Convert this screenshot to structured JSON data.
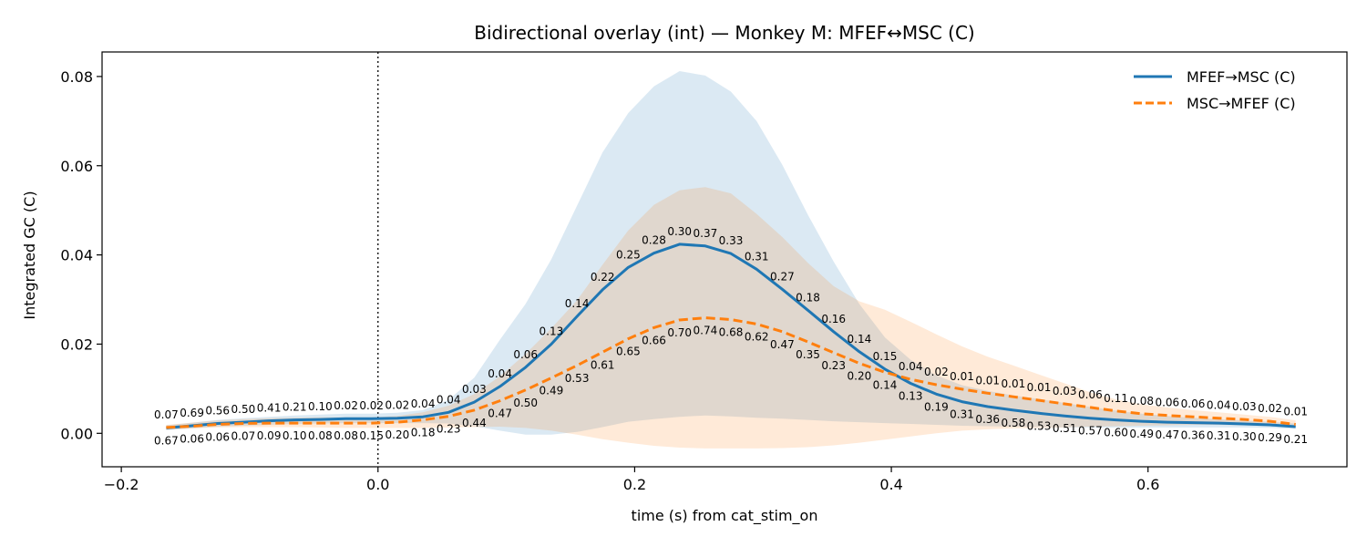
{
  "chart_data": {
    "type": "line",
    "title": "Bidirectional overlay (int) — Monkey M: MFEF↔MSC (C)",
    "xlabel": "time (s) from cat_stim_on",
    "ylabel": "Integrated GC (C)",
    "xlim": [
      -0.215,
      0.755
    ],
    "ylim": [
      -0.0075,
      0.0855
    ],
    "xticks": [
      -0.2,
      0.0,
      0.2,
      0.4,
      0.6
    ],
    "xtick_labels": [
      "−0.2",
      "0.0",
      "0.2",
      "0.4",
      "0.6"
    ],
    "yticks": [
      0.0,
      0.02,
      0.04,
      0.06,
      0.08
    ],
    "ytick_labels": [
      "0.00",
      "0.02",
      "0.04",
      "0.06",
      "0.08"
    ],
    "grid": false,
    "legend_position": "top-right",
    "vline_x": 0.0,
    "x": [
      -0.165,
      -0.145,
      -0.125,
      -0.105,
      -0.085,
      -0.065,
      -0.045,
      -0.025,
      -0.005,
      0.015,
      0.035,
      0.055,
      0.075,
      0.095,
      0.115,
      0.135,
      0.155,
      0.175,
      0.195,
      0.215,
      0.235,
      0.255,
      0.275,
      0.295,
      0.315,
      0.335,
      0.355,
      0.375,
      0.395,
      0.415,
      0.435,
      0.455,
      0.475,
      0.495,
      0.515,
      0.535,
      0.555,
      0.575,
      0.595,
      0.615,
      0.635,
      0.655,
      0.675,
      0.695,
      0.715
    ],
    "series": [
      {
        "name": "MFEF→MSC (C)",
        "color": "#1f77b4",
        "style": "solid",
        "values": [
          0.0012,
          0.0017,
          0.0022,
          0.0025,
          0.0028,
          0.003,
          0.0031,
          0.0033,
          0.0033,
          0.0034,
          0.0037,
          0.0047,
          0.007,
          0.0105,
          0.0148,
          0.02,
          0.0262,
          0.0322,
          0.0372,
          0.0404,
          0.0424,
          0.042,
          0.0403,
          0.0368,
          0.0323,
          0.0276,
          0.0228,
          0.0183,
          0.0144,
          0.0112,
          0.0088,
          0.0071,
          0.006,
          0.0052,
          0.0045,
          0.0039,
          0.0034,
          0.003,
          0.0027,
          0.0025,
          0.0024,
          0.0023,
          0.0021,
          0.0019,
          0.0015
        ],
        "band_upper": [
          0.0018,
          0.0024,
          0.003,
          0.0034,
          0.0037,
          0.004,
          0.0042,
          0.0044,
          0.0044,
          0.0046,
          0.0052,
          0.0075,
          0.0125,
          0.021,
          0.029,
          0.039,
          0.051,
          0.063,
          0.0718,
          0.0778,
          0.0812,
          0.0802,
          0.0766,
          0.07,
          0.0602,
          0.049,
          0.0385,
          0.029,
          0.0215,
          0.0165,
          0.013,
          0.0108,
          0.0095,
          0.0085,
          0.0077,
          0.0068,
          0.0059,
          0.0051,
          0.0044,
          0.0039,
          0.0035,
          0.0032,
          0.0029,
          0.0026,
          0.0022
        ],
        "band_lower": [
          0.0007,
          0.0011,
          0.0015,
          0.0017,
          0.0019,
          0.0021,
          0.0022,
          0.0023,
          0.0023,
          0.0023,
          0.0023,
          0.0022,
          0.0016,
          0.0006,
          -0.0003,
          -0.0003,
          0.0003,
          0.0014,
          0.0026,
          0.0032,
          0.0037,
          0.004,
          0.0038,
          0.0035,
          0.0033,
          0.003,
          0.0027,
          0.0025,
          0.0023,
          0.0021,
          0.0019,
          0.0017,
          0.0016,
          0.0015,
          0.0014,
          0.0013,
          0.0013,
          0.0013,
          0.0013,
          0.0013,
          0.0013,
          0.0013,
          0.0013,
          0.0012,
          0.001
        ],
        "point_labels": [
          "0.67",
          "0.69",
          "0.56",
          "0.50",
          "0.41",
          "0.21",
          "0.10",
          "0.02",
          "0.02",
          "0.02",
          "0.04",
          "0.04",
          "0.03",
          "0.04",
          "0.06",
          "0.13",
          "0.14",
          "0.22",
          "0.25",
          "0.28",
          "0.30",
          "0.37",
          "0.33",
          "0.31",
          "0.27",
          "0.18",
          "0.16",
          "0.14",
          "0.15",
          "0.13",
          "0.19",
          "0.31",
          "0.36",
          "0.58",
          "0.53",
          "0.51",
          "0.57",
          "0.60",
          "0.49",
          "0.47",
          "0.36",
          "0.31",
          "0.30",
          "0.29",
          "0.21"
        ]
      },
      {
        "name": "MSC→MFEF (C)",
        "color": "#ff7f0e",
        "style": "dashed",
        "values": [
          0.0013,
          0.0016,
          0.002,
          0.0022,
          0.0023,
          0.0023,
          0.0023,
          0.0023,
          0.0023,
          0.0025,
          0.003,
          0.0038,
          0.0052,
          0.0073,
          0.0097,
          0.0124,
          0.0152,
          0.0182,
          0.0212,
          0.0237,
          0.0254,
          0.0259,
          0.0255,
          0.0245,
          0.0228,
          0.0205,
          0.0181,
          0.0157,
          0.0137,
          0.0121,
          0.0109,
          0.0099,
          0.009,
          0.0082,
          0.0074,
          0.0066,
          0.0058,
          0.005,
          0.0044,
          0.004,
          0.0037,
          0.0034,
          0.0031,
          0.0027,
          0.002
        ],
        "band_upper": [
          0.0019,
          0.0024,
          0.0029,
          0.0032,
          0.0034,
          0.0035,
          0.0036,
          0.0036,
          0.0036,
          0.0039,
          0.0047,
          0.0062,
          0.0088,
          0.0128,
          0.0178,
          0.0235,
          0.0298,
          0.0378,
          0.0455,
          0.0512,
          0.0545,
          0.0552,
          0.0538,
          0.0492,
          0.044,
          0.0382,
          0.033,
          0.0296,
          0.0277,
          0.025,
          0.0222,
          0.0195,
          0.0172,
          0.0152,
          0.0132,
          0.0112,
          0.0092,
          0.0076,
          0.0065,
          0.0058,
          0.0052,
          0.0047,
          0.0042,
          0.0037,
          0.0029
        ],
        "band_lower": [
          0.0008,
          0.0011,
          0.0013,
          0.0014,
          0.0014,
          0.0014,
          0.0013,
          0.0012,
          0.0012,
          0.0012,
          0.0012,
          0.0013,
          0.0014,
          0.0015,
          0.0012,
          0.0006,
          -0.0003,
          -0.0013,
          -0.0021,
          -0.0028,
          -0.0032,
          -0.0034,
          -0.0034,
          -0.0034,
          -0.0033,
          -0.0031,
          -0.0027,
          -0.0021,
          -0.0014,
          -0.0007,
          0.0,
          0.0006,
          0.0009,
          0.0011,
          0.0012,
          0.0013,
          0.0015,
          0.0016,
          0.0017,
          0.0018,
          0.0019,
          0.0019,
          0.0018,
          0.0016,
          0.0012
        ],
        "point_labels": [
          "0.07",
          "0.06",
          "0.06",
          "0.07",
          "0.09",
          "0.10",
          "0.08",
          "0.08",
          "0.15",
          "0.20",
          "0.18",
          "0.23",
          "0.44",
          "0.47",
          "0.50",
          "0.49",
          "0.53",
          "0.61",
          "0.65",
          "0.66",
          "0.70",
          "0.74",
          "0.68",
          "0.62",
          "0.47",
          "0.35",
          "0.23",
          "0.20",
          "0.14",
          "0.04",
          "0.02",
          "0.01",
          "0.01",
          "0.01",
          "0.01",
          "0.03",
          "0.06",
          "0.11",
          "0.08",
          "0.06",
          "0.06",
          "0.04",
          "0.03",
          "0.02",
          "0.01"
        ]
      }
    ]
  }
}
